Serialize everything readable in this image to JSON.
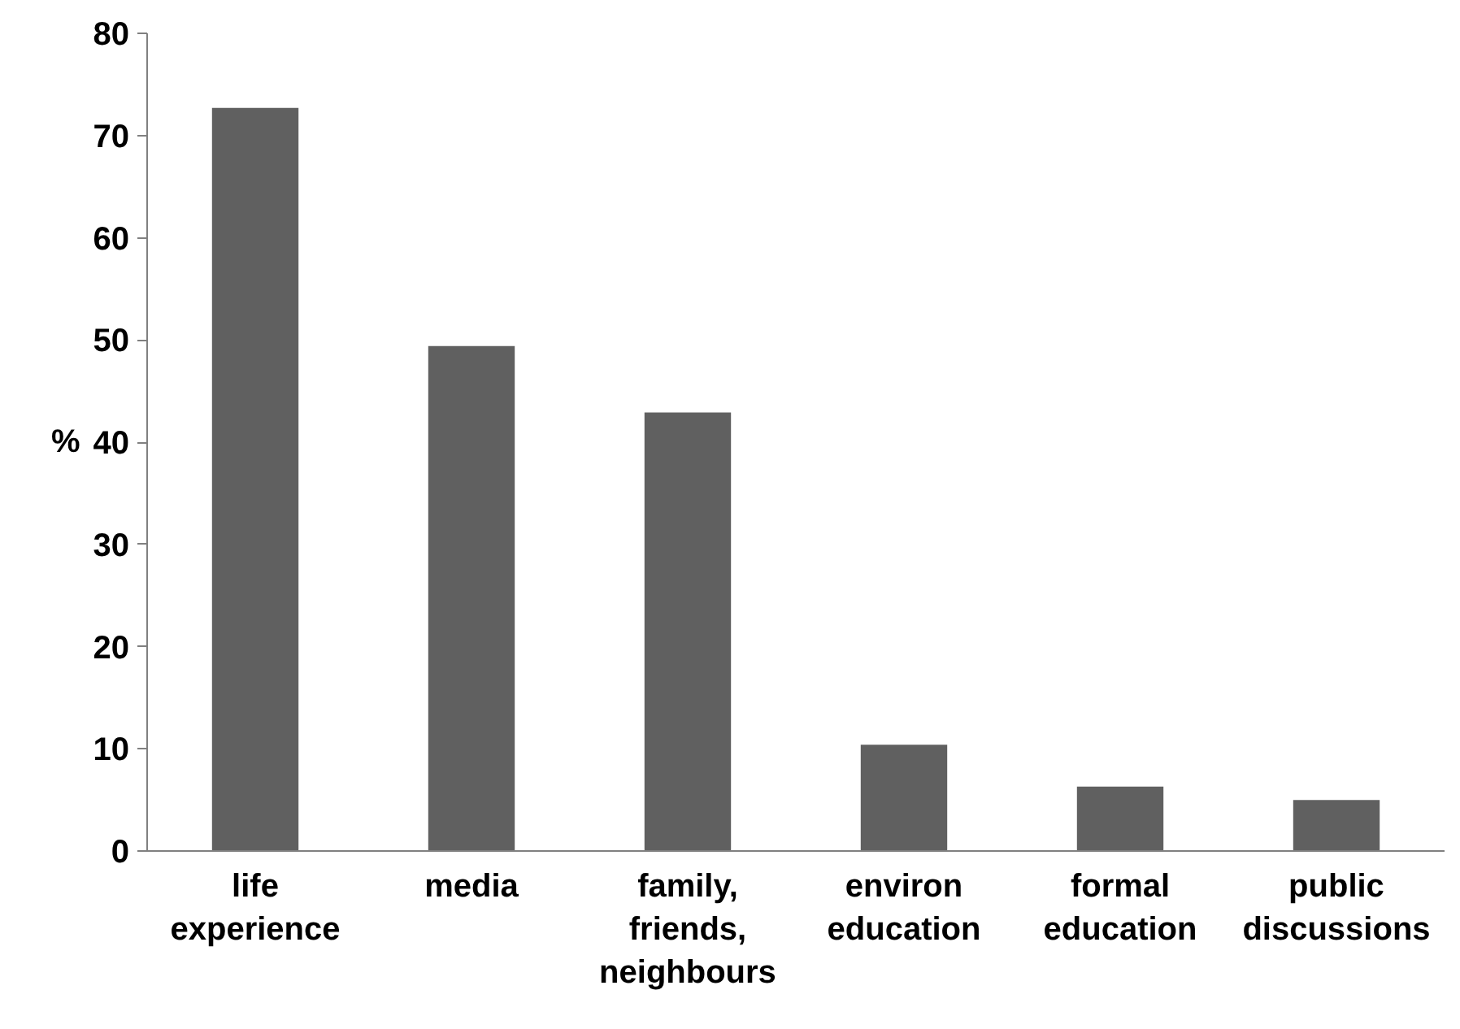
{
  "chart_data": {
    "type": "bar",
    "ylabel": "%",
    "categories": [
      "life experience",
      "media",
      "family, friends, neighbours",
      "environ education",
      "formal education",
      "public discussions"
    ],
    "values": [
      72.7,
      49.4,
      42.9,
      10.4,
      6.3,
      5.0
    ],
    "color": "#606060",
    "ylim": [
      0,
      80
    ],
    "yticks": [
      0,
      10,
      20,
      30,
      40,
      50,
      60,
      70,
      80
    ],
    "grid": false
  }
}
